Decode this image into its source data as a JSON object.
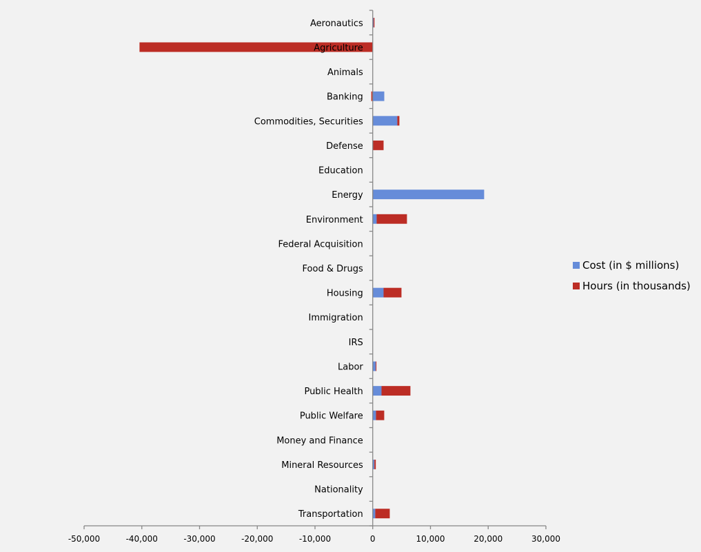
{
  "chart_data": {
    "type": "bar",
    "orientation": "horizontal",
    "stacked": true,
    "title": "",
    "xlabel": "",
    "ylabel": "",
    "xlim": [
      -50000,
      30000
    ],
    "x_ticks": [
      -50000,
      -40000,
      -30000,
      -20000,
      -10000,
      0,
      10000,
      20000,
      30000
    ],
    "x_tick_labels": [
      "-50,000",
      "-40,000",
      "-30,000",
      "-20,000",
      "-10,000",
      "0",
      "10,000",
      "20,000",
      "30,000"
    ],
    "grid": false,
    "legend_position": "right",
    "categories": [
      "Aeronautics",
      "Agriculture",
      "Animals",
      "Banking",
      "Commodities, Securities",
      "Defense",
      "Education",
      "Energy",
      "Environment",
      "Federal Acquisition",
      "Food & Drugs",
      "Housing",
      "Immigration",
      "IRS",
      "Labor",
      "Public Health",
      "Public Welfare",
      "Money and Finance",
      "Mineral Resources",
      "Nationality",
      "Transportation"
    ],
    "series": [
      {
        "name": "Cost (in $ millions)",
        "color": "#668cd9",
        "values": [
          150,
          0,
          0,
          2000,
          4260,
          0,
          0,
          19300,
          680,
          0,
          0,
          1880,
          0,
          0,
          520,
          1520,
          560,
          0,
          290,
          0,
          440
        ]
      },
      {
        "name": "Hours (in thousands)",
        "color": "#bc2d25",
        "values": [
          150,
          -40400,
          0,
          -250,
          360,
          1880,
          0,
          0,
          5250,
          0,
          0,
          3100,
          0,
          0,
          120,
          5010,
          1430,
          0,
          240,
          0,
          2510
        ]
      }
    ]
  }
}
